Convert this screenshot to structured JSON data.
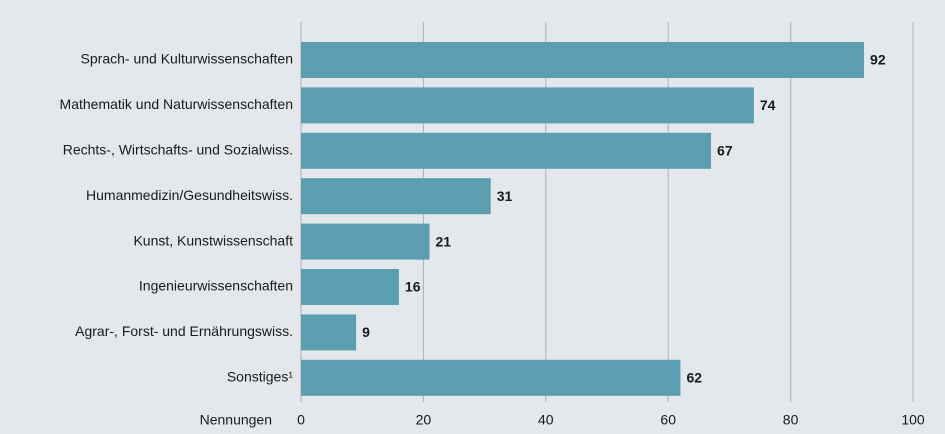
{
  "chart_data": {
    "type": "barh",
    "categories": [
      "Sprach- und Kulturwissenschaften",
      "Mathematik und Naturwissenschaften",
      "Rechts-, Wirtschafts- und Sozialwiss.",
      "Humanmedizin/Gesundheitswiss.",
      "Kunst, Kunstwissenschaft",
      "Ingenieurwissenschaften",
      "Agrar-, Forst- und Ernährungswiss.",
      "Sonstiges¹"
    ],
    "values": [
      92,
      74,
      67,
      31,
      21,
      16,
      9,
      62
    ],
    "color": "#5a9eb0",
    "xlabel": "Nennungen",
    "xlim": [
      0,
      100
    ],
    "xticks": [
      0,
      20,
      40,
      60,
      80,
      100
    ],
    "grid": true
  }
}
